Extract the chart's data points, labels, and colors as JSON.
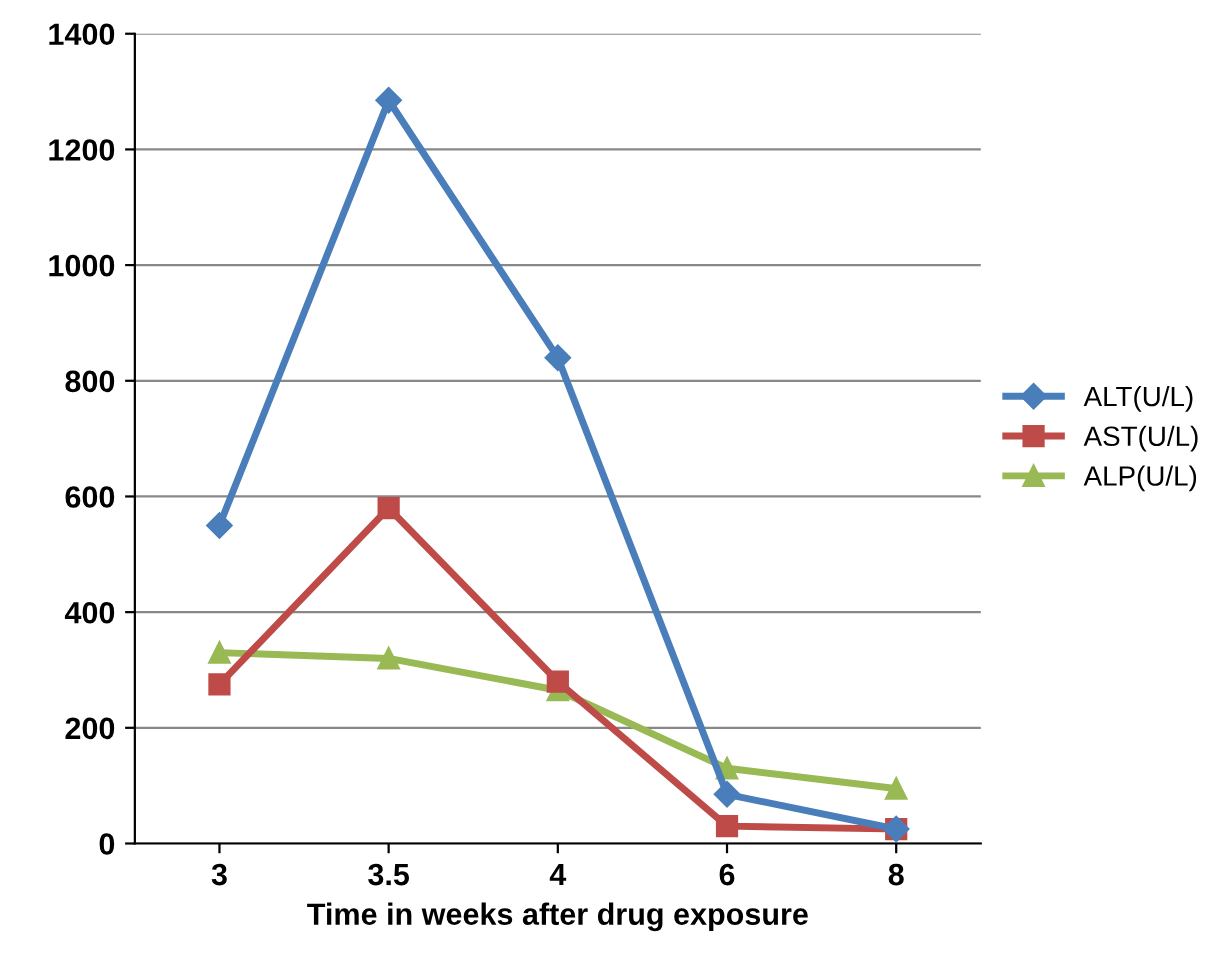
{
  "chart_data": {
    "type": "line",
    "xlabel": "Time in weeks after drug exposure",
    "categories": [
      "3",
      "3.5",
      "4",
      "6",
      "8"
    ],
    "series": [
      {
        "name": "ALT(U/L)",
        "color": "#4a7ebb",
        "marker": "diamond",
        "values": [
          550,
          1285,
          840,
          85,
          25
        ]
      },
      {
        "name": "AST(U/L)",
        "color": "#be4b48",
        "marker": "square",
        "values": [
          275,
          580,
          280,
          30,
          25
        ]
      },
      {
        "name": "ALP(U/L)",
        "color": "#98b954",
        "marker": "triangle",
        "values": [
          330,
          320,
          265,
          130,
          95
        ]
      }
    ],
    "ylim": [
      0,
      1400
    ],
    "yticks": [
      0,
      200,
      400,
      600,
      800,
      1000,
      1200,
      1400
    ],
    "grid": "y",
    "legend": "right"
  }
}
